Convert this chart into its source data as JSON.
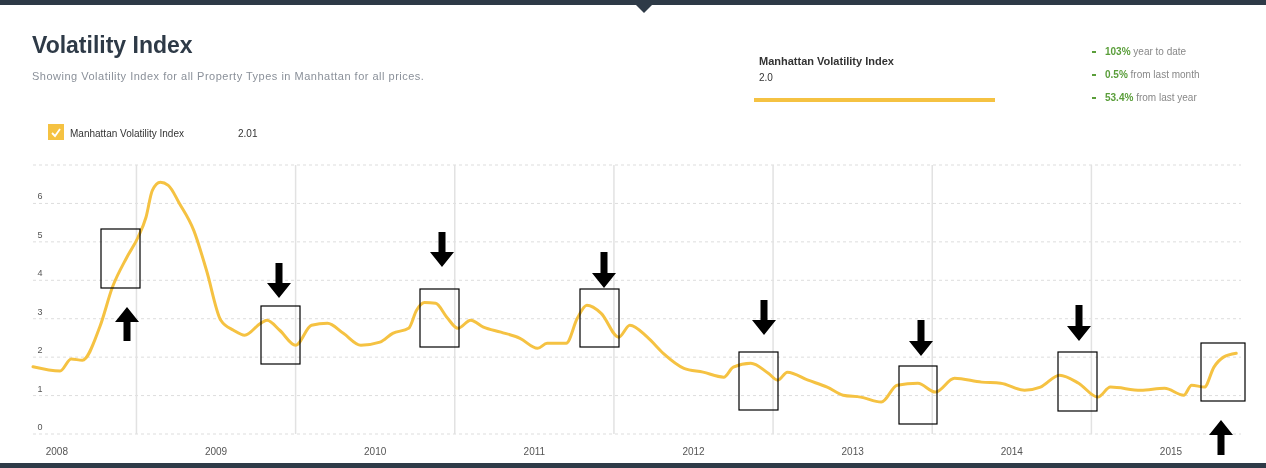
{
  "chart_data": {
    "type": "line",
    "title": "Volatility Index",
    "subtitle": "Showing Volatility Index for all Property Types in Manhattan for all prices.",
    "annotations": [
      "2.01",
      "Manhattan Volatility Index",
      "2.0",
      "103% year to date",
      "0.5% from last month",
      "53.4% from last year"
    ],
    "x": [
      2007.85,
      2008.02,
      2008.09,
      2008.16,
      2008.27,
      2008.35,
      2008.44,
      2008.51,
      2008.56,
      2008.6,
      2008.65,
      2008.7,
      2008.77,
      2008.86,
      2008.94,
      2009.03,
      2009.11,
      2009.18,
      2009.28,
      2009.32,
      2009.4,
      2009.5,
      2009.6,
      2009.7,
      2009.8,
      2009.91,
      2010.03,
      2010.11,
      2010.21,
      2010.26,
      2010.31,
      2010.38,
      2010.45,
      2010.52,
      2010.6,
      2010.68,
      2010.79,
      2010.91,
      2011.02,
      2011.08,
      2011.2,
      2011.27,
      2011.33,
      2011.42,
      2011.53,
      2011.6,
      2011.71,
      2011.81,
      2011.94,
      2012.06,
      2012.19,
      2012.25,
      2012.36,
      2012.47,
      2012.53,
      2012.59,
      2012.72,
      2012.84,
      2012.94,
      2013.05,
      2013.18,
      2013.28,
      2013.41,
      2013.52,
      2013.64,
      2013.81,
      2013.93,
      2014.08,
      2014.18,
      2014.3,
      2014.42,
      2014.54,
      2014.62,
      2014.81,
      2014.96,
      2015.08,
      2015.13,
      2015.21,
      2015.27,
      2015.33,
      2015.41
    ],
    "series": [
      {
        "name": "Manhattan Volatility Index",
        "color": "#f5c242",
        "values": [
          1.75,
          1.64,
          1.95,
          1.92,
          2.79,
          3.83,
          4.6,
          5.12,
          5.64,
          6.34,
          6.55,
          6.47,
          6.0,
          5.3,
          4.26,
          2.96,
          2.7,
          2.57,
          2.88,
          2.96,
          2.7,
          2.31,
          2.83,
          2.88,
          2.62,
          2.31,
          2.39,
          2.62,
          2.75,
          3.22,
          3.42,
          3.4,
          3.04,
          2.75,
          2.96,
          2.78,
          2.65,
          2.49,
          2.23,
          2.36,
          2.36,
          3.01,
          3.35,
          3.14,
          2.52,
          2.83,
          2.52,
          2.1,
          1.71,
          1.61,
          1.48,
          1.74,
          1.84,
          1.58,
          1.4,
          1.61,
          1.4,
          1.22,
          1.01,
          0.96,
          0.83,
          1.27,
          1.32,
          1.09,
          1.45,
          1.35,
          1.32,
          1.14,
          1.22,
          1.53,
          1.32,
          0.96,
          1.22,
          1.14,
          1.19,
          1.01,
          1.27,
          1.22,
          1.74,
          2.0,
          2.1
        ]
      }
    ],
    "xlim": [
      2007.85,
      2015.44
    ],
    "xticks": [
      {
        "value": 2008,
        "label": "2008"
      },
      {
        "value": 2008.5,
        "label": null
      },
      {
        "value": 2009,
        "label": "2009"
      },
      {
        "value": 2009.5,
        "label": null
      },
      {
        "value": 2010,
        "label": "2010"
      },
      {
        "value": 2010.5,
        "label": null
      },
      {
        "value": 2011,
        "label": "2011"
      },
      {
        "value": 2011.5,
        "label": null
      },
      {
        "value": 2012,
        "label": "2012"
      },
      {
        "value": 2012.5,
        "label": null
      },
      {
        "value": 2013,
        "label": "2013"
      },
      {
        "value": 2013.5,
        "label": null
      },
      {
        "value": 2014,
        "label": "2014"
      },
      {
        "value": 2014.5,
        "label": null
      },
      {
        "value": 2015,
        "label": "2015"
      }
    ],
    "ylim": [
      0,
      7
    ],
    "yticks": [
      0,
      1,
      2,
      3,
      4,
      5,
      6,
      {
        "value": 7,
        "label": null
      }
    ],
    "grid": true,
    "legend": "top left",
    "marker": "none",
    "line_style": "solid"
  }
}
